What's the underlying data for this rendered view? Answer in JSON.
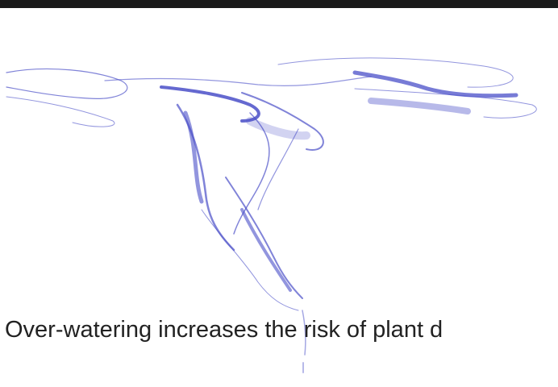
{
  "article": {
    "caption": "Over-watering increases the risk of plant d"
  }
}
